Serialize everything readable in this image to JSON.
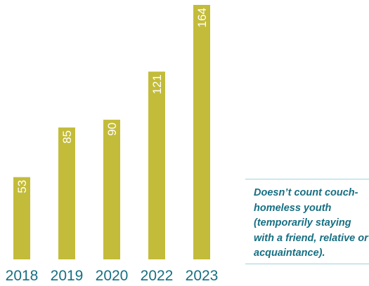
{
  "chart_data": {
    "type": "bar",
    "categories": [
      "2018",
      "2019",
      "2020",
      "2022",
      "2023"
    ],
    "values": [
      53,
      85,
      90,
      121,
      164
    ],
    "title": "",
    "xlabel": "",
    "ylabel": "",
    "ylim": [
      0,
      164
    ],
    "grid": false,
    "legend": "none"
  },
  "note": {
    "text": "Doesn’t count couch-homeless youth (temporarily staying with a friend, relative or acquaintance)."
  },
  "colors": {
    "bar": "#c3bc3a",
    "bar_label": "#ffffff",
    "category_label": "#176f82",
    "note_text": "#176f82",
    "rule": "#9fd3da"
  }
}
